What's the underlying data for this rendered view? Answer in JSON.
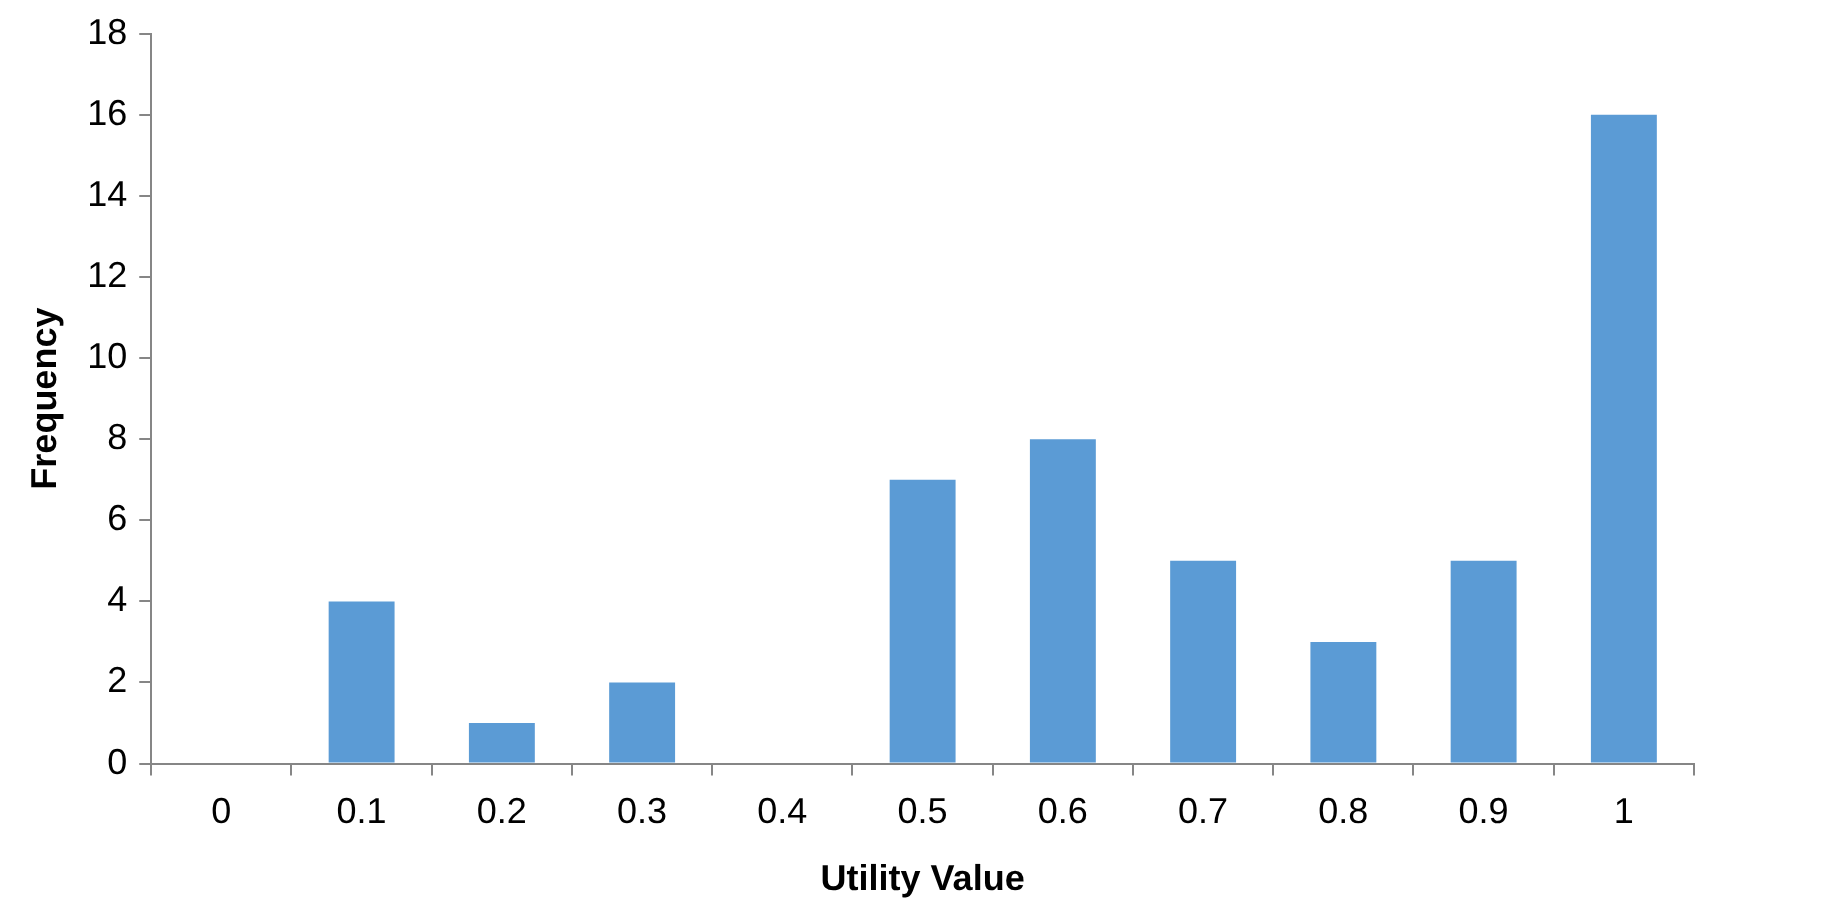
{
  "chart_data": {
    "type": "bar",
    "xlabel": "Utility Value",
    "ylabel": "Frequency",
    "categories": [
      "0",
      "0.1",
      "0.2",
      "0.3",
      "0.4",
      "0.5",
      "0.6",
      "0.7",
      "0.8",
      "0.9",
      "1"
    ],
    "values": [
      0,
      4,
      1,
      2,
      0,
      7,
      8,
      5,
      3,
      5,
      16
    ],
    "color": "#5b9bd5",
    "ylim": [
      0,
      18
    ],
    "yticks": [
      0,
      2,
      4,
      6,
      8,
      10,
      12,
      14,
      16,
      18
    ],
    "grid": false,
    "legend": false
  }
}
